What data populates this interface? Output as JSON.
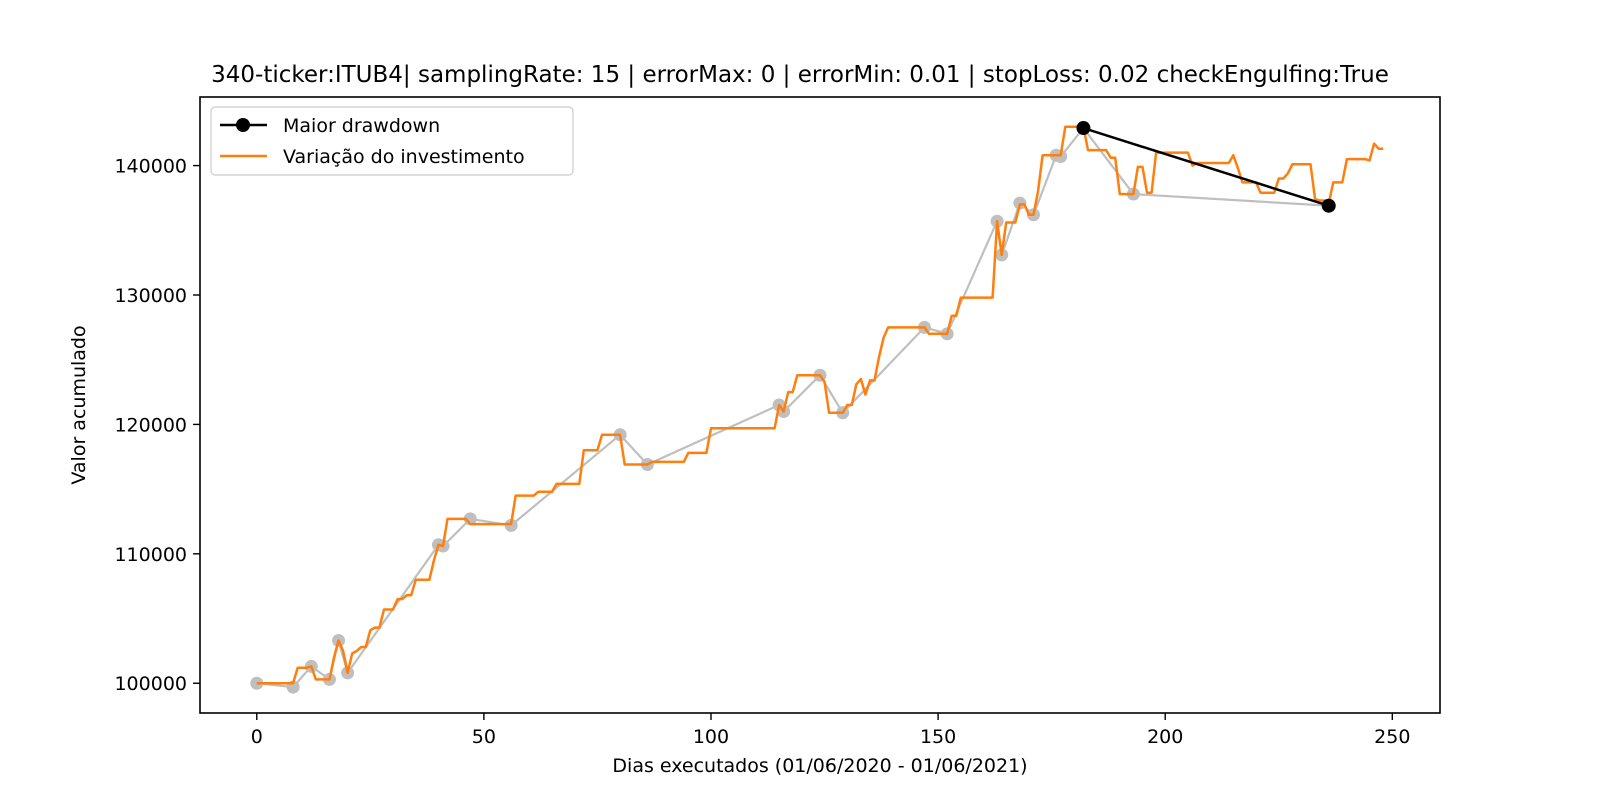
{
  "chart_data": {
    "type": "line",
    "title": "340-ticker:ITUB4| samplingRate: 15 | errorMax: 0 | errorMin: 0.01 | stopLoss: 0.02 checkEngulfing:True",
    "xlabel": "Dias executados (01/06/2020 - 01/06/2021)",
    "ylabel": "Valor acumulado",
    "xlim": [
      -12.5,
      260.5
    ],
    "ylim": [
      97700,
      145300
    ],
    "xticks": [
      0,
      50,
      100,
      150,
      200,
      250
    ],
    "yticks": [
      100000,
      110000,
      120000,
      130000,
      140000
    ],
    "grid": false,
    "legend_position": "top-left",
    "legend": [
      "Maior drawdown",
      "Variação do investimento"
    ],
    "series": [
      {
        "name": "",
        "kind": "scatter-markers",
        "color": "#bfbfbf",
        "points": [
          [
            0,
            100000
          ],
          [
            8,
            99700
          ],
          [
            12,
            101300
          ],
          [
            16,
            100300
          ],
          [
            18,
            103300
          ],
          [
            20,
            100800
          ],
          [
            40,
            110700
          ],
          [
            41,
            110600
          ],
          [
            47,
            112700
          ],
          [
            56,
            112200
          ],
          [
            80,
            119200
          ],
          [
            86,
            116900
          ],
          [
            115,
            121500
          ],
          [
            116,
            121000
          ],
          [
            124,
            123800
          ],
          [
            129,
            120900
          ],
          [
            147,
            127500
          ],
          [
            152,
            127000
          ],
          [
            163,
            135700
          ],
          [
            164,
            133100
          ],
          [
            168,
            137100
          ],
          [
            171,
            136200
          ],
          [
            176,
            140800
          ],
          [
            177,
            140700
          ],
          [
            182,
            142900
          ],
          [
            193,
            137800
          ],
          [
            236,
            136900
          ]
        ]
      },
      {
        "name": "Maior drawdown",
        "kind": "line-markers",
        "color": "#000000",
        "points": [
          [
            182,
            142900
          ],
          [
            236,
            136900
          ]
        ]
      },
      {
        "name": "Variação do investimento",
        "kind": "line",
        "color": "#ff7f0e",
        "points": [
          [
            0,
            100000
          ],
          [
            8,
            100000
          ],
          [
            9,
            101200
          ],
          [
            11,
            101200
          ],
          [
            12,
            101300
          ],
          [
            13,
            100300
          ],
          [
            16,
            100300
          ],
          [
            17,
            102000
          ],
          [
            18,
            103300
          ],
          [
            19,
            102500
          ],
          [
            20,
            100800
          ],
          [
            21,
            102300
          ],
          [
            22,
            102500
          ],
          [
            23,
            102800
          ],
          [
            24,
            102800
          ],
          [
            25,
            104100
          ],
          [
            26,
            104300
          ],
          [
            27,
            104300
          ],
          [
            28,
            105700
          ],
          [
            29,
            105700
          ],
          [
            30,
            105700
          ],
          [
            31,
            106500
          ],
          [
            32,
            106500
          ],
          [
            33,
            106800
          ],
          [
            34,
            106800
          ],
          [
            35,
            108000
          ],
          [
            36,
            108000
          ],
          [
            37,
            108000
          ],
          [
            38,
            108000
          ],
          [
            39,
            109500
          ],
          [
            40,
            110700
          ],
          [
            41,
            110600
          ],
          [
            42,
            112700
          ],
          [
            46,
            112700
          ],
          [
            47,
            112300
          ],
          [
            56,
            112300
          ],
          [
            57,
            114500
          ],
          [
            61,
            114500
          ],
          [
            62,
            114800
          ],
          [
            65,
            114800
          ],
          [
            66,
            115400
          ],
          [
            71,
            115400
          ],
          [
            72,
            118000
          ],
          [
            75,
            118000
          ],
          [
            76,
            119200
          ],
          [
            80,
            119200
          ],
          [
            81,
            116900
          ],
          [
            86,
            116900
          ],
          [
            87,
            117100
          ],
          [
            94,
            117100
          ],
          [
            95,
            117800
          ],
          [
            99,
            117800
          ],
          [
            100,
            119700
          ],
          [
            114,
            119700
          ],
          [
            115,
            121500
          ],
          [
            116,
            121000
          ],
          [
            117,
            122500
          ],
          [
            118,
            122500
          ],
          [
            119,
            123800
          ],
          [
            124,
            123800
          ],
          [
            125,
            123300
          ],
          [
            126,
            120900
          ],
          [
            129,
            120900
          ],
          [
            130,
            121500
          ],
          [
            131,
            121500
          ],
          [
            132,
            123100
          ],
          [
            133,
            123500
          ],
          [
            134,
            122300
          ],
          [
            135,
            123400
          ],
          [
            136,
            123400
          ],
          [
            137,
            125200
          ],
          [
            138,
            126700
          ],
          [
            139,
            127500
          ],
          [
            147,
            127500
          ],
          [
            148,
            127000
          ],
          [
            152,
            127000
          ],
          [
            153,
            128400
          ],
          [
            154,
            128400
          ],
          [
            155,
            129800
          ],
          [
            162,
            129800
          ],
          [
            163,
            135700
          ],
          [
            164,
            133100
          ],
          [
            165,
            135600
          ],
          [
            167,
            135600
          ],
          [
            168,
            137000
          ],
          [
            169,
            137000
          ],
          [
            170,
            136200
          ],
          [
            171,
            136200
          ],
          [
            172,
            138000
          ],
          [
            173,
            140800
          ],
          [
            177,
            140800
          ],
          [
            178,
            143000
          ],
          [
            182,
            143000
          ],
          [
            183,
            141200
          ],
          [
            187,
            141200
          ],
          [
            188,
            140600
          ],
          [
            189,
            140600
          ],
          [
            190,
            137800
          ],
          [
            192,
            137800
          ],
          [
            193,
            137800
          ],
          [
            194,
            139900
          ],
          [
            195,
            139900
          ],
          [
            196,
            137900
          ],
          [
            197,
            137900
          ],
          [
            198,
            141000
          ],
          [
            205,
            141000
          ],
          [
            206,
            140000
          ],
          [
            207,
            140200
          ],
          [
            214,
            140200
          ],
          [
            215,
            140800
          ],
          [
            216,
            139800
          ],
          [
            217,
            138700
          ],
          [
            220,
            138700
          ],
          [
            221,
            137900
          ],
          [
            224,
            137900
          ],
          [
            225,
            139000
          ],
          [
            226,
            139000
          ],
          [
            227,
            139400
          ],
          [
            228,
            140100
          ],
          [
            232,
            140100
          ],
          [
            233,
            137400
          ],
          [
            234,
            137300
          ],
          [
            235,
            137300
          ],
          [
            236,
            137100
          ],
          [
            237,
            138700
          ],
          [
            239,
            138700
          ],
          [
            240,
            140500
          ],
          [
            244,
            140500
          ],
          [
            245,
            140400
          ],
          [
            246,
            141700
          ],
          [
            247,
            141300
          ],
          [
            248,
            141300
          ]
        ]
      }
    ]
  }
}
